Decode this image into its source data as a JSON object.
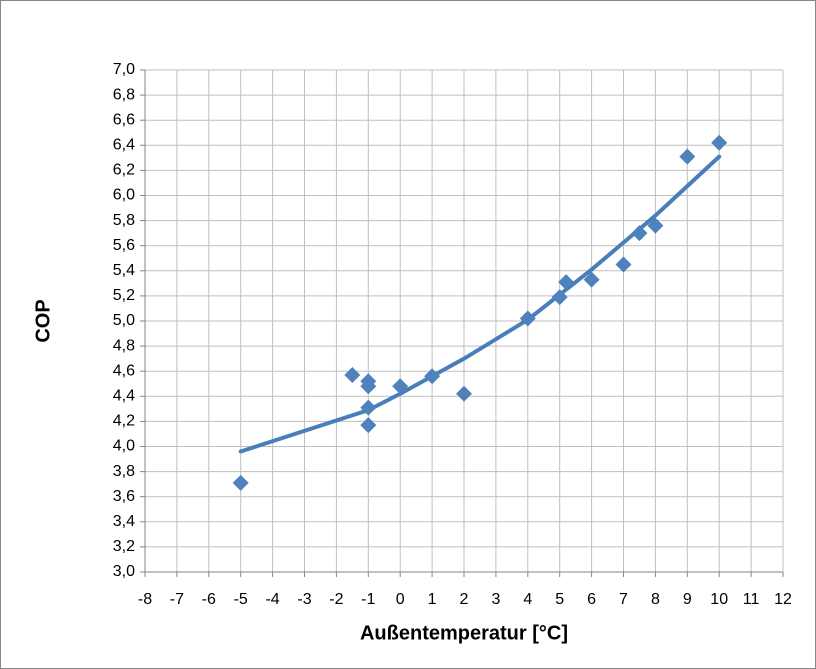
{
  "chart_data": {
    "type": "scatter",
    "x_label": "Außentemperatur [°C]",
    "y_label": "COP",
    "x": [
      -5,
      -1.5,
      -1,
      -1,
      -1,
      -1,
      0,
      1,
      2,
      4,
      5,
      5.2,
      6,
      7,
      7.5,
      8,
      9,
      10
    ],
    "values": [
      3.71,
      4.57,
      4.52,
      4.48,
      4.31,
      4.17,
      4.48,
      4.56,
      4.42,
      5.02,
      5.19,
      5.31,
      5.33,
      5.45,
      5.7,
      5.76,
      6.31,
      6.42
    ],
    "color": "#4f81bd",
    "trendline": {
      "x": [
        -5,
        -1,
        0,
        2,
        4,
        6,
        8,
        10
      ],
      "values": [
        3.96,
        4.29,
        4.42,
        4.7,
        5.01,
        5.41,
        5.84,
        6.31
      ],
      "color": "#4a7ebb"
    },
    "xlim": [
      -8,
      12
    ],
    "xticks": [
      -8,
      -7,
      -6,
      -5,
      -4,
      -3,
      -2,
      -1,
      0,
      1,
      2,
      3,
      4,
      5,
      6,
      7,
      8,
      9,
      10,
      11,
      12
    ],
    "ylim": [
      3,
      7
    ],
    "yticks": [
      {
        "value": 3,
        "label": "3,0"
      },
      {
        "value": 3.2,
        "label": "3,2"
      },
      {
        "value": 3.4,
        "label": "3,4"
      },
      {
        "value": 3.6,
        "label": "3,6"
      },
      {
        "value": 3.8,
        "label": "3,8"
      },
      {
        "value": 4,
        "label": "4,0"
      },
      {
        "value": 4.2,
        "label": "4,2"
      },
      {
        "value": 4.4,
        "label": "4,4"
      },
      {
        "value": 4.6,
        "label": "4,6"
      },
      {
        "value": 4.8,
        "label": "4,8"
      },
      {
        "value": 5,
        "label": "5,0"
      },
      {
        "value": 5.2,
        "label": "5,2"
      },
      {
        "value": 5.4,
        "label": "5,4"
      },
      {
        "value": 5.6,
        "label": "5,6"
      },
      {
        "value": 5.8,
        "label": "5,8"
      },
      {
        "value": 6,
        "label": "6,0"
      },
      {
        "value": 6.2,
        "label": "6,2"
      },
      {
        "value": 6.4,
        "label": "6,4"
      },
      {
        "value": 6.6,
        "label": "6,6"
      },
      {
        "value": 6.8,
        "label": "6,8"
      },
      {
        "value": 7,
        "label": "7,0"
      }
    ],
    "grid": true
  }
}
